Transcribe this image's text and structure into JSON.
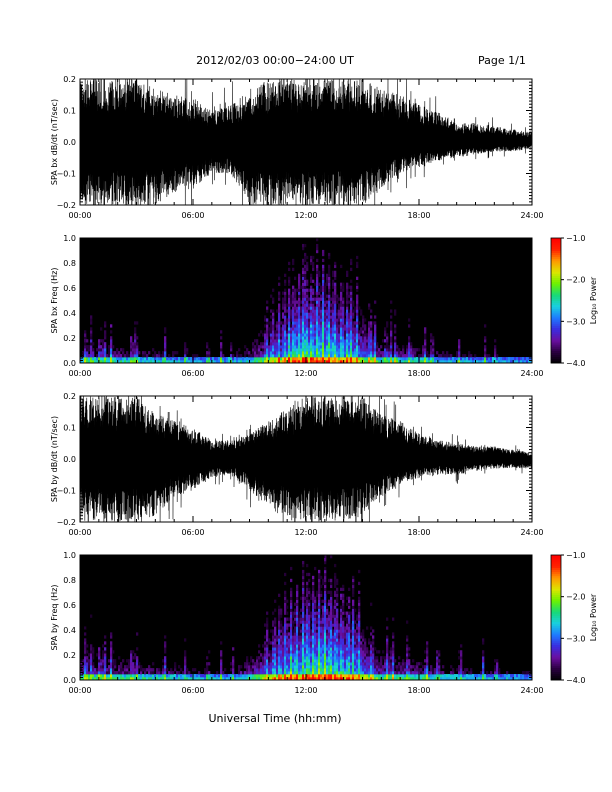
{
  "header": {
    "date_range": "2012/02/03   00:00−24:00 UT",
    "page": "Page 1/1"
  },
  "footer": {
    "xlabel": "Universal Time (hh:mm)"
  },
  "colors": {
    "trace": "#000000",
    "spectrogram_background": "#000000",
    "colorbar_stops": [
      "#000000",
      "#2a0040",
      "#6a0fa0",
      "#3a2de0",
      "#1e7bff",
      "#19d0e0",
      "#18d978",
      "#6cf200",
      "#dde600",
      "#ff9a00",
      "#ff2200",
      "#ff0000"
    ]
  },
  "chart_data": [
    {
      "type": "line",
      "id": "bx-dbdt",
      "ylabel": "SPA bx dB/dt (nT/sec)",
      "xlim": [
        "00:00",
        "24:00"
      ],
      "ylim": [
        -0.2,
        0.2
      ],
      "x_ticks": [
        "00:00",
        "06:00",
        "12:00",
        "18:00",
        "24:00"
      ],
      "y_ticks": [
        "−0.2",
        "−0.1",
        "0.0",
        "0.1",
        "0.2"
      ],
      "envelope": {
        "hours": [
          0,
          1,
          2,
          3,
          4,
          5,
          6,
          7,
          8,
          9,
          10,
          11,
          12,
          13,
          14,
          15,
          16,
          17,
          18,
          19,
          20,
          21,
          22,
          23,
          24
        ],
        "max": [
          0.2,
          0.2,
          0.2,
          0.2,
          0.17,
          0.15,
          0.14,
          0.1,
          0.12,
          0.16,
          0.2,
          0.2,
          0.2,
          0.2,
          0.2,
          0.2,
          0.17,
          0.15,
          0.12,
          0.1,
          0.06,
          0.06,
          0.05,
          0.04,
          0.03
        ],
        "min": [
          -0.2,
          -0.2,
          -0.2,
          -0.2,
          -0.2,
          -0.16,
          -0.15,
          -0.1,
          -0.1,
          -0.2,
          -0.2,
          -0.2,
          -0.2,
          -0.2,
          -0.2,
          -0.2,
          -0.16,
          -0.1,
          -0.08,
          -0.06,
          -0.05,
          -0.04,
          -0.03,
          -0.03,
          -0.02
        ]
      }
    },
    {
      "type": "heatmap",
      "id": "bx-freq",
      "ylabel": "SPA bx Freq (Hz)",
      "xlim": [
        "00:00",
        "24:00"
      ],
      "ylim": [
        0.0,
        1.0
      ],
      "x_ticks": [
        "00:00",
        "06:00",
        "12:00",
        "18:00",
        "24:00"
      ],
      "y_ticks": [
        "0.0",
        "0.2",
        "0.4",
        "0.6",
        "0.8",
        "1.0"
      ],
      "colorbar": {
        "label": "Log₁₀ Power",
        "range": [
          -4.0,
          -1.0
        ],
        "ticks": [
          "−4.0",
          "−3.0",
          "−2.0",
          "−1.0"
        ]
      },
      "bursts_hours": [
        0.3,
        0.6,
        1.05,
        1.3,
        1.65,
        2.75,
        2.9,
        3.0,
        4.5,
        5.6,
        6.8,
        7.5,
        8.0,
        9.9,
        10.2,
        10.55,
        10.85,
        11.1,
        11.35,
        11.6,
        11.85,
        12.0,
        12.3,
        12.6,
        12.9,
        13.2,
        13.5,
        13.9,
        14.2,
        14.4,
        14.7,
        15.4,
        15.65,
        16.25,
        16.5,
        16.75,
        17.5,
        18.3,
        18.7,
        20.1,
        21.5,
        22.0
      ],
      "low_freq_power": {
        "hours": [
          0,
          2,
          4,
          6,
          8,
          10,
          11,
          12,
          13,
          14,
          15,
          16,
          18,
          20,
          22,
          24
        ],
        "log10_power": [
          -3.0,
          -3.0,
          -3.1,
          -3.3,
          -3.3,
          -2.6,
          -2.3,
          -2.0,
          -2.0,
          -2.2,
          -2.4,
          -2.9,
          -3.0,
          -3.2,
          -3.3,
          -3.4
        ]
      }
    },
    {
      "type": "line",
      "id": "by-dbdt",
      "ylabel": "SPA by dB/dt (nT/sec)",
      "xlim": [
        "00:00",
        "24:00"
      ],
      "ylim": [
        -0.2,
        0.2
      ],
      "x_ticks": [
        "00:00",
        "06:00",
        "12:00",
        "18:00",
        "24:00"
      ],
      "y_ticks": [
        "−0.2",
        "−0.1",
        "0.0",
        "0.1",
        "0.2"
      ],
      "envelope": {
        "hours": [
          0,
          1,
          2,
          3,
          4,
          5,
          6,
          7,
          8,
          9,
          10,
          11,
          12,
          13,
          14,
          15,
          16,
          17,
          18,
          19,
          20,
          21,
          22,
          23,
          24
        ],
        "max": [
          0.2,
          0.2,
          0.2,
          0.2,
          0.15,
          0.12,
          0.1,
          0.06,
          0.06,
          0.08,
          0.12,
          0.16,
          0.2,
          0.2,
          0.2,
          0.2,
          0.14,
          0.12,
          0.08,
          0.06,
          0.05,
          0.04,
          0.04,
          0.03,
          0.02
        ],
        "min": [
          -0.2,
          -0.2,
          -0.2,
          -0.2,
          -0.18,
          -0.12,
          -0.1,
          -0.06,
          -0.05,
          -0.1,
          -0.15,
          -0.2,
          -0.2,
          -0.2,
          -0.2,
          -0.18,
          -0.12,
          -0.08,
          -0.06,
          -0.05,
          -0.05,
          -0.04,
          -0.03,
          -0.03,
          -0.03
        ]
      }
    },
    {
      "type": "heatmap",
      "id": "by-freq",
      "ylabel": "SPA by Freq (Hz)",
      "xlim": [
        "00:00",
        "24:00"
      ],
      "ylim": [
        0.0,
        1.0
      ],
      "x_ticks": [
        "00:00",
        "06:00",
        "12:00",
        "18:00",
        "24:00"
      ],
      "y_ticks": [
        "0.0",
        "0.2",
        "0.4",
        "0.6",
        "0.8",
        "1.0"
      ],
      "colorbar": {
        "label": "Log₁₀ Power",
        "range": [
          -4.0,
          -1.0
        ],
        "ticks": [
          "−4.0",
          "−3.0",
          "−2.0",
          "−1.0"
        ]
      },
      "bursts_hours": [
        0.3,
        0.6,
        1.05,
        1.3,
        1.65,
        2.75,
        3.0,
        4.5,
        5.6,
        6.8,
        7.5,
        8.1,
        9.9,
        10.3,
        10.6,
        10.9,
        11.2,
        11.5,
        11.85,
        12.1,
        12.4,
        12.7,
        13.0,
        13.3,
        13.6,
        13.9,
        14.25,
        14.5,
        14.8,
        15.5,
        16.3,
        16.6,
        17.4,
        18.4,
        19.0,
        20.2,
        21.4,
        22.1
      ],
      "low_freq_power": {
        "hours": [
          0,
          2,
          4,
          6,
          8,
          10,
          11,
          12,
          13,
          14,
          15,
          16,
          18,
          20,
          22,
          24
        ],
        "log10_power": [
          -2.8,
          -2.9,
          -3.0,
          -3.2,
          -3.2,
          -2.5,
          -2.2,
          -2.0,
          -1.9,
          -2.1,
          -2.3,
          -2.8,
          -2.9,
          -3.1,
          -3.2,
          -3.3
        ]
      }
    }
  ]
}
